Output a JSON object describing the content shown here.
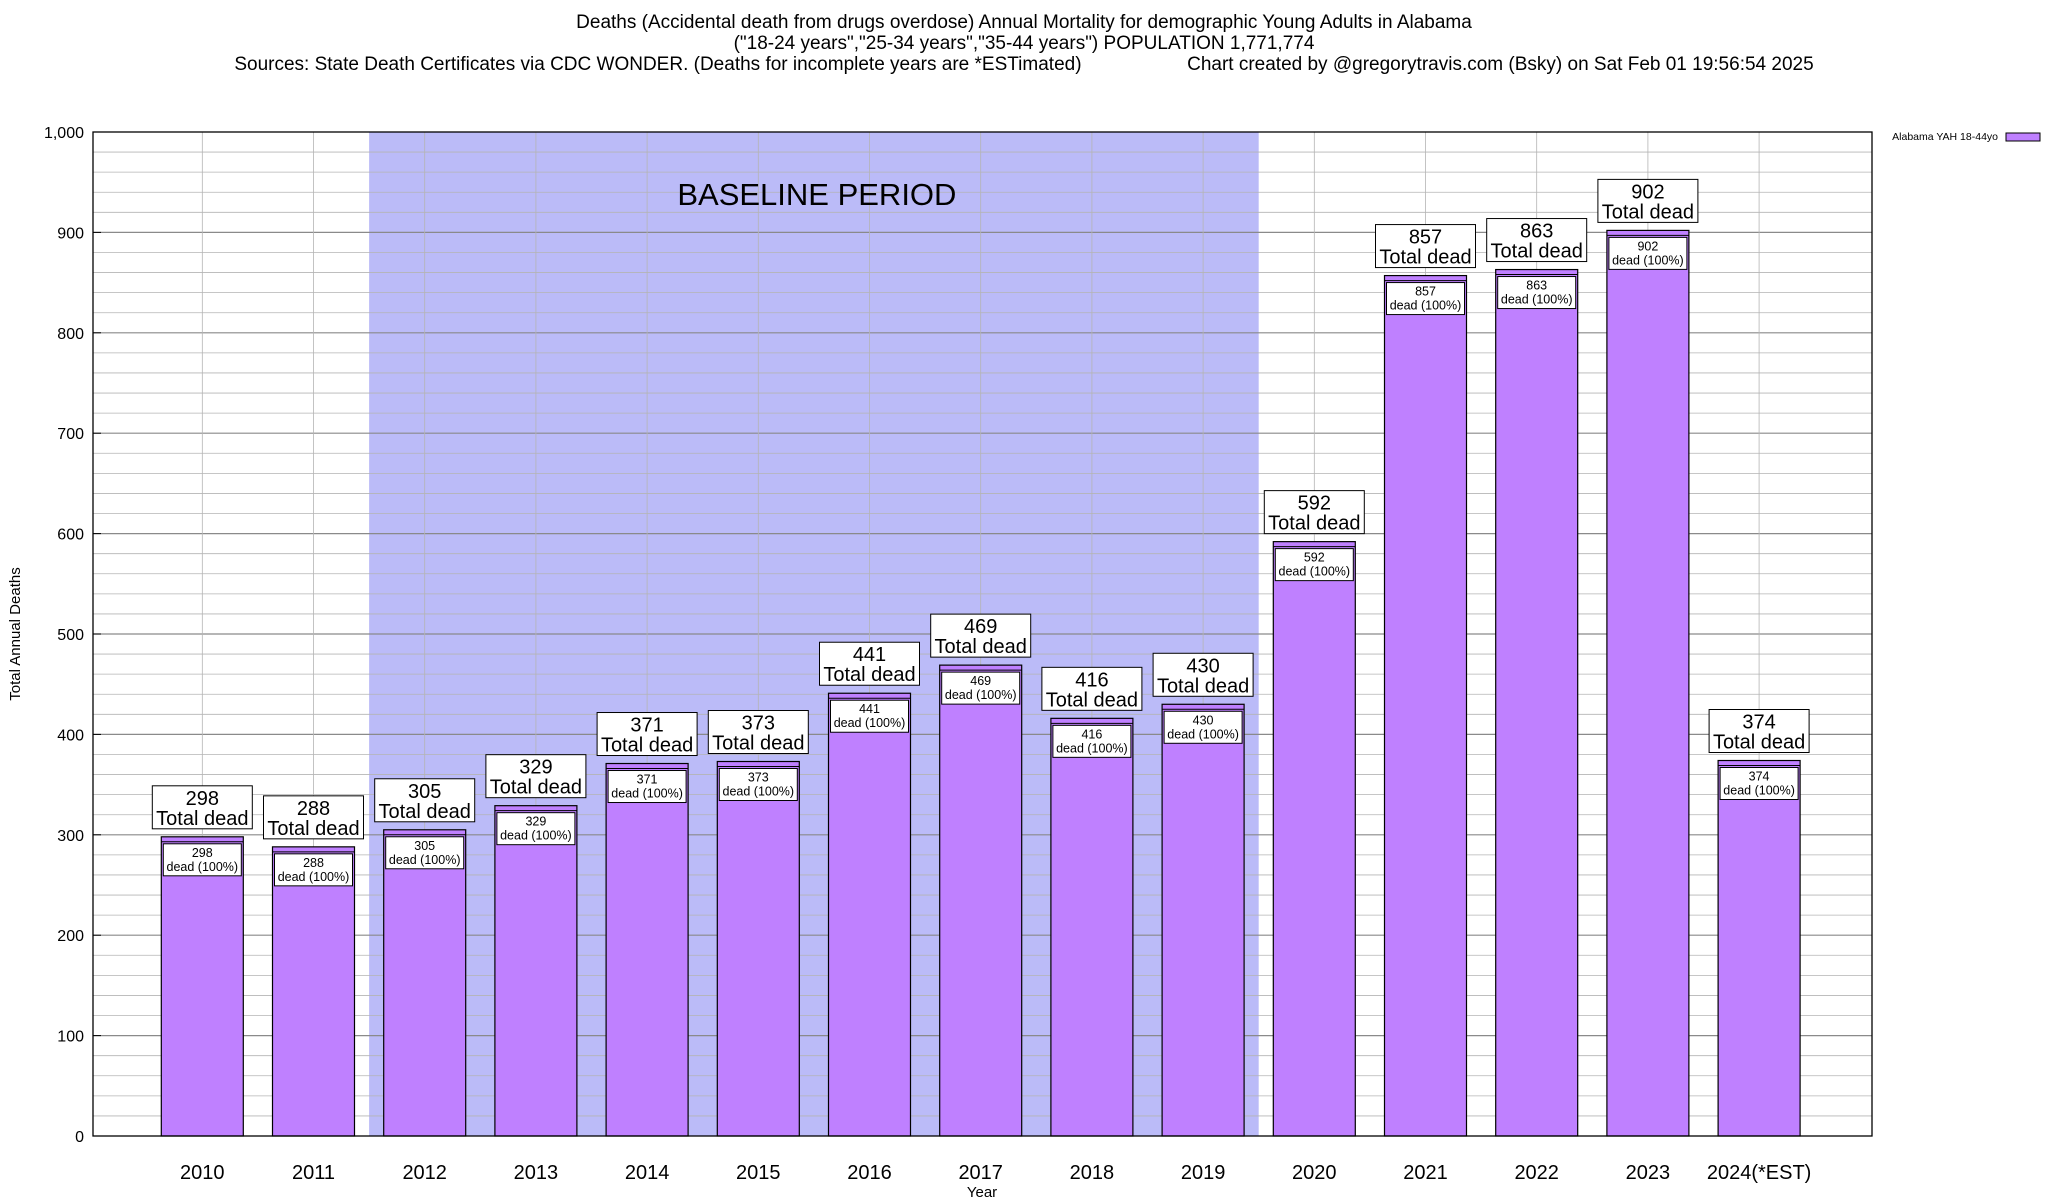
{
  "header": {
    "title": "Deaths (Accidental death from drugs overdose) Annual Mortality for demographic Young Adults in Alabama",
    "subtitle": "(\"18-24 years\",\"25-34 years\",\"35-44 years\") POPULATION 1,771,774",
    "sources": "Sources: State Death Certificates via CDC WONDER. (Deaths for incomplete years are *ESTimated)                    Chart created by @gregorytravis.com (Bsky) on Sat Feb 01 19:56:54 2025"
  },
  "chart_data": {
    "type": "bar",
    "xlabel": "Year",
    "ylabel": "Total Annual Deaths",
    "ylim": [
      0,
      1000
    ],
    "yticks": [
      0,
      100,
      200,
      300,
      400,
      500,
      600,
      700,
      800,
      900,
      1000
    ],
    "ytick_labels": [
      "0",
      "100",
      "200",
      "300",
      "400",
      "500",
      "600",
      "700",
      "800",
      "900",
      "1,000"
    ],
    "grid": true,
    "legend": {
      "placement": "top-right",
      "label": "Alabama YAH 18-44yo"
    },
    "categories": [
      "2010",
      "2011",
      "2012",
      "2013",
      "2014",
      "2015",
      "2016",
      "2017",
      "2018",
      "2019",
      "2020",
      "2021",
      "2022",
      "2023",
      "2024(*EST)"
    ],
    "series": [
      {
        "name": "Alabama YAH 18-44yo",
        "values": [
          298,
          288,
          305,
          329,
          371,
          373,
          441,
          469,
          416,
          430,
          592,
          857,
          863,
          902,
          374
        ]
      }
    ],
    "bar_label_top": "Total dead",
    "bar_label_inner": "dead (100%)",
    "baseline_period": {
      "label": "BASELINE PERIOD",
      "start": "2012",
      "end": "2019"
    },
    "colors": {
      "bar": "#bf80ff",
      "baseline_band": "#bbbbf8",
      "grid": "#a0a0a0"
    }
  }
}
